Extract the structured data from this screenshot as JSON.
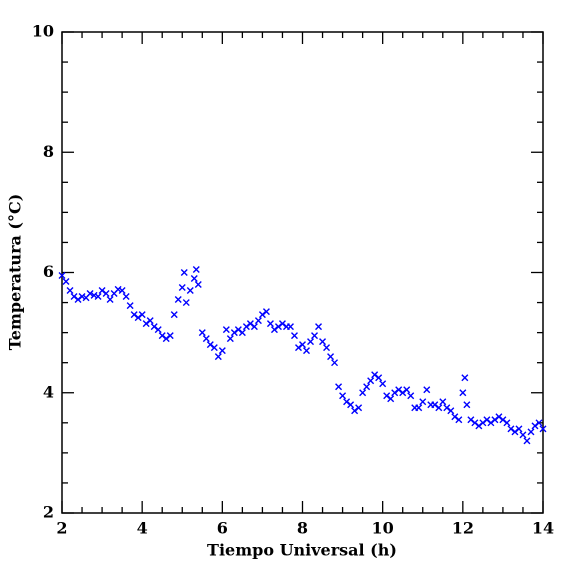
{
  "chart_data": {
    "type": "scatter",
    "xlabel": "Tiempo Universal (h)",
    "ylabel": "Temperatura (°C)",
    "color": "#0000ff",
    "xlim": [
      2,
      14
    ],
    "ylim": [
      2,
      10
    ],
    "xticks": [
      2,
      4,
      6,
      8,
      10,
      12,
      14
    ],
    "yticks": [
      2,
      4,
      6,
      8,
      10
    ],
    "xminorticks": [
      2.5,
      3,
      3.5,
      4.5,
      5,
      5.5,
      6.5,
      7,
      7.5,
      8.5,
      9,
      9.5,
      10.5,
      11,
      11.5,
      12.5,
      13,
      13.5
    ],
    "yminorticks": [
      2.5,
      3,
      3.5,
      4.5,
      5,
      5.5,
      6.5,
      7,
      7.5,
      8.5,
      9,
      9.5
    ],
    "x": [
      2.0,
      2.1,
      2.2,
      2.3,
      2.4,
      2.5,
      2.6,
      2.7,
      2.8,
      2.9,
      3.0,
      3.1,
      3.2,
      3.3,
      3.4,
      3.5,
      3.6,
      3.7,
      3.8,
      3.9,
      4.0,
      4.1,
      4.2,
      4.3,
      4.4,
      4.5,
      4.6,
      4.7,
      4.8,
      4.9,
      5.0,
      5.05,
      5.1,
      5.2,
      5.3,
      5.35,
      5.4,
      5.5,
      5.6,
      5.7,
      5.8,
      5.9,
      6.0,
      6.1,
      6.2,
      6.3,
      6.4,
      6.5,
      6.6,
      6.7,
      6.8,
      6.9,
      7.0,
      7.1,
      7.2,
      7.3,
      7.4,
      7.5,
      7.6,
      7.7,
      7.8,
      7.9,
      8.0,
      8.1,
      8.2,
      8.3,
      8.4,
      8.5,
      8.6,
      8.7,
      8.8,
      8.9,
      9.0,
      9.1,
      9.2,
      9.3,
      9.4,
      9.5,
      9.6,
      9.7,
      9.8,
      9.9,
      10.0,
      10.1,
      10.2,
      10.3,
      10.4,
      10.5,
      10.6,
      10.7,
      10.8,
      10.9,
      11.0,
      11.1,
      11.2,
      11.3,
      11.4,
      11.5,
      11.6,
      11.7,
      11.8,
      11.9,
      12.0,
      12.05,
      12.1,
      12.2,
      12.3,
      12.4,
      12.5,
      12.6,
      12.7,
      12.8,
      12.9,
      13.0,
      13.1,
      13.2,
      13.3,
      13.4,
      13.5,
      13.6,
      13.7,
      13.8,
      13.9,
      14.0
    ],
    "values": [
      5.95,
      5.85,
      5.7,
      5.6,
      5.55,
      5.6,
      5.58,
      5.65,
      5.62,
      5.6,
      5.7,
      5.65,
      5.55,
      5.65,
      5.72,
      5.7,
      5.6,
      5.45,
      5.3,
      5.25,
      5.3,
      5.15,
      5.2,
      5.1,
      5.05,
      4.95,
      4.9,
      4.95,
      5.3,
      5.55,
      5.75,
      6.0,
      5.5,
      5.7,
      5.9,
      6.05,
      5.8,
      5.0,
      4.9,
      4.8,
      4.75,
      4.6,
      4.7,
      5.05,
      4.9,
      5.0,
      5.05,
      5.0,
      5.1,
      5.15,
      5.1,
      5.2,
      5.3,
      5.35,
      5.15,
      5.05,
      5.1,
      5.15,
      5.1,
      5.1,
      4.95,
      4.75,
      4.8,
      4.7,
      4.85,
      4.95,
      5.1,
      4.85,
      4.75,
      4.6,
      4.5,
      4.1,
      3.95,
      3.85,
      3.8,
      3.7,
      3.75,
      4.0,
      4.1,
      4.2,
      4.3,
      4.25,
      4.15,
      3.95,
      3.9,
      4.0,
      4.05,
      4.0,
      4.05,
      3.95,
      3.75,
      3.75,
      3.85,
      4.05,
      3.8,
      3.8,
      3.75,
      3.85,
      3.75,
      3.7,
      3.6,
      3.55,
      4.0,
      4.25,
      3.8,
      3.55,
      3.5,
      3.45,
      3.5,
      3.55,
      3.5,
      3.55,
      3.6,
      3.55,
      3.5,
      3.4,
      3.35,
      3.4,
      3.3,
      3.2,
      3.35,
      3.45,
      3.5,
      3.4
    ]
  }
}
